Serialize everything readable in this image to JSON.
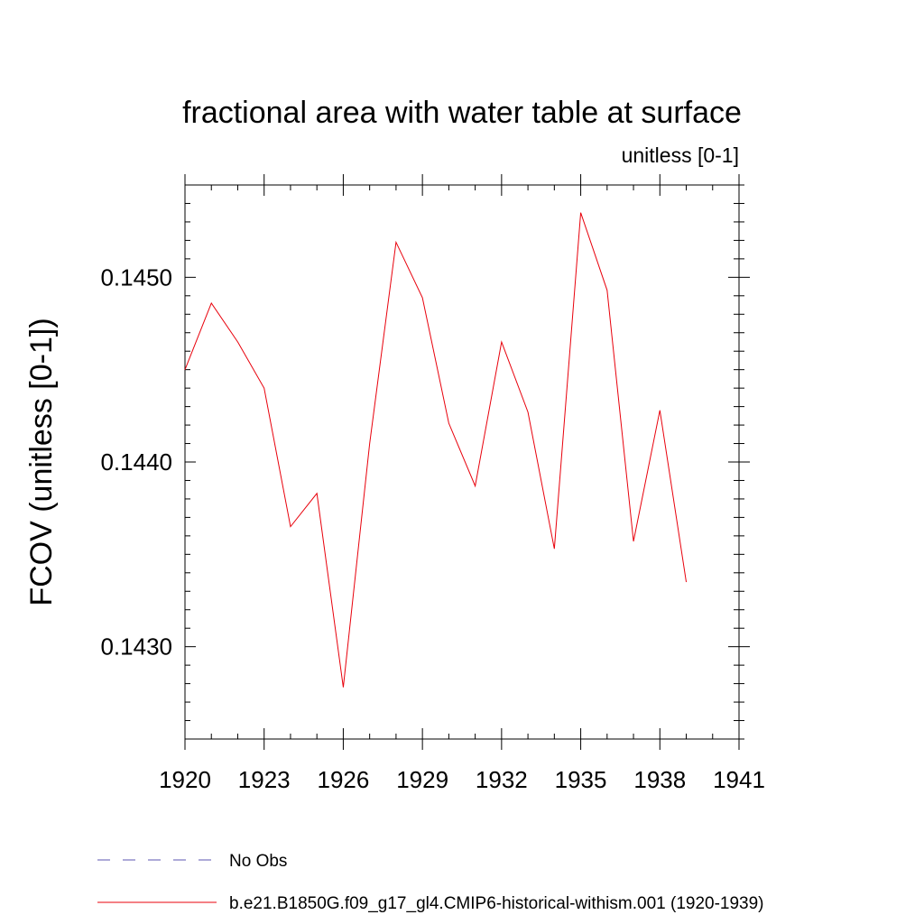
{
  "chart_data": {
    "type": "line",
    "title": "fractional area with water table at surface",
    "units_label": "unitless [0-1]",
    "ylabel": "FCOV  (unitless [0-1])",
    "xlabel": "",
    "xlim": [
      1920,
      1941
    ],
    "ylim": [
      0.1425,
      0.1455
    ],
    "xticks": [
      "1920",
      "1923",
      "1926",
      "1929",
      "1932",
      "1935",
      "1938",
      "1941"
    ],
    "yticks": [
      "0.1430",
      "0.1440",
      "0.1450"
    ],
    "grid": false,
    "legend_position": "bottom-left",
    "series": [
      {
        "name": "b.e21.B1850G.f09_g17_gl4.CMIP6-historical-withism.001 (1920-1939)",
        "color": "#e8000b",
        "line_style": "solid",
        "x": [
          1920,
          1921,
          1922,
          1923,
          1924,
          1925,
          1926,
          1927,
          1928,
          1929,
          1930,
          1931,
          1932,
          1933,
          1934,
          1935,
          1936,
          1937,
          1938,
          1939
        ],
        "y": [
          0.1445,
          0.14486,
          0.14465,
          0.1444,
          0.14365,
          0.14383,
          0.14278,
          0.1441,
          0.14519,
          0.14489,
          0.14421,
          0.14387,
          0.14465,
          0.14427,
          0.14353,
          0.14535,
          0.14493,
          0.14357,
          0.14428,
          0.14335
        ]
      }
    ],
    "legend": [
      {
        "label": "No Obs",
        "color": "#5b56b0",
        "line_style": "dashed"
      },
      {
        "label": "b.e21.B1850G.f09_g17_gl4.CMIP6-historical-withism.001 (1920-1939)",
        "color": "#e8000b",
        "line_style": "solid"
      }
    ]
  }
}
